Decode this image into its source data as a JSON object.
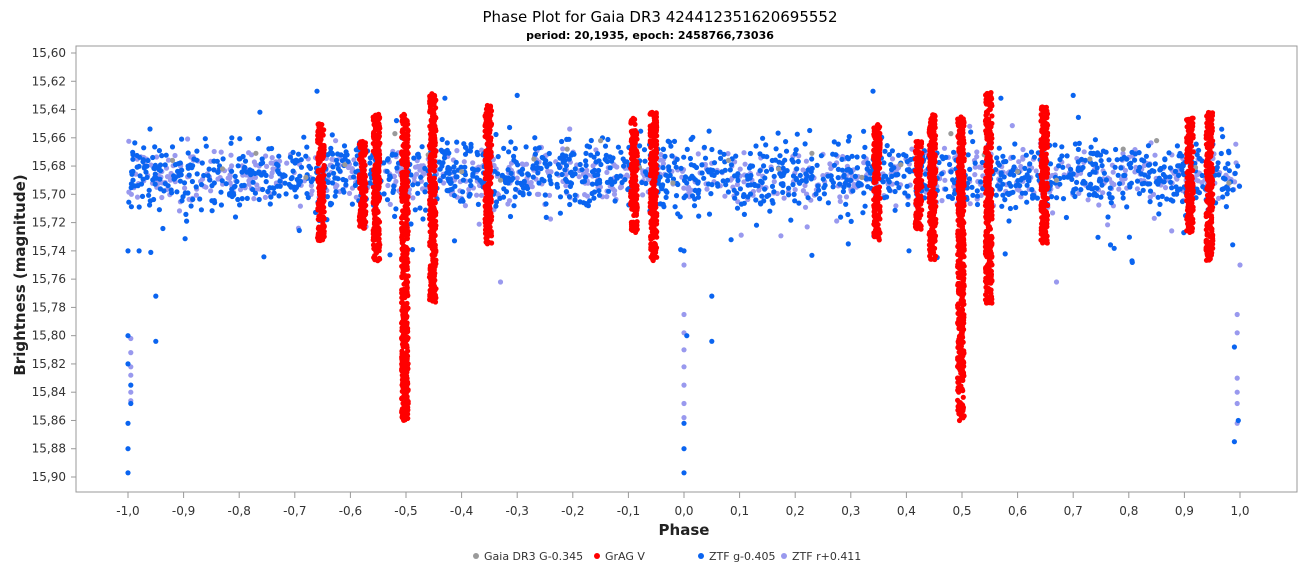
{
  "chart_data": {
    "type": "scatter",
    "title": "Phase Plot for Gaia DR3 424412351620695552",
    "subtitle": "period: 20,1935, epoch: 2458766,73036",
    "xlabel": "Phase",
    "ylabel": "Brightness (magnitude)",
    "xlim": [
      -1.0,
      1.0
    ],
    "ylim": [
      15.6,
      15.9
    ],
    "y_inverted": true,
    "x_ticks": [
      "-1,0",
      "-0,9",
      "-0,8",
      "-0,7",
      "-0,6",
      "-0,5",
      "-0,4",
      "-0,3",
      "-0,2",
      "-0,1",
      "0,0",
      "0,1",
      "0,2",
      "0,3",
      "0,4",
      "0,5",
      "0,6",
      "0,7",
      "0,8",
      "0,9",
      "1,0"
    ],
    "y_ticks": [
      "15,60",
      "15,62",
      "15,64",
      "15,66",
      "15,68",
      "15,70",
      "15,72",
      "15,74",
      "15,76",
      "15,78",
      "15,80",
      "15,82",
      "15,84",
      "15,86",
      "15,88",
      "15,90"
    ],
    "grid": false,
    "legend_position": "bottom-center",
    "series": [
      {
        "name": "Gaia DR3 G-0.345",
        "color": "#9a9a9a",
        "points": [
          [
            -0.92,
            15.676
          ],
          [
            -0.83,
            15.682
          ],
          [
            -0.77,
            15.671
          ],
          [
            -0.68,
            15.688
          ],
          [
            -0.61,
            15.679
          ],
          [
            -0.55,
            15.66
          ],
          [
            -0.52,
            15.657
          ],
          [
            -0.46,
            15.672
          ],
          [
            -0.4,
            15.684
          ],
          [
            -0.33,
            15.69
          ],
          [
            -0.27,
            15.675
          ],
          [
            -0.21,
            15.668
          ],
          [
            -0.15,
            15.662
          ],
          [
            -0.08,
            15.681
          ],
          [
            -0.02,
            15.692
          ],
          [
            0.08,
            15.676
          ],
          [
            0.17,
            15.682
          ],
          [
            0.23,
            15.671
          ],
          [
            0.32,
            15.688
          ],
          [
            0.39,
            15.679
          ],
          [
            0.45,
            15.66
          ],
          [
            0.48,
            15.657
          ],
          [
            0.54,
            15.672
          ],
          [
            0.6,
            15.684
          ],
          [
            0.67,
            15.69
          ],
          [
            0.73,
            15.675
          ],
          [
            0.79,
            15.668
          ],
          [
            0.85,
            15.662
          ],
          [
            0.92,
            15.681
          ],
          [
            0.98,
            15.692
          ]
        ]
      },
      {
        "name": "GrAG V",
        "color": "#ff0000",
        "clusters": [
          {
            "x": -0.653,
            "y_min": 15.65,
            "y_max": 15.733
          },
          {
            "x": -0.578,
            "y_min": 15.662,
            "y_max": 15.725
          },
          {
            "x": -0.553,
            "y_min": 15.643,
            "y_max": 15.747
          },
          {
            "x": -0.502,
            "y_min": 15.643,
            "y_max": 15.86
          },
          {
            "x": -0.452,
            "y_min": 15.628,
            "y_max": 15.777
          },
          {
            "x": -0.352,
            "y_min": 15.637,
            "y_max": 15.735
          },
          {
            "x": -0.09,
            "y_min": 15.645,
            "y_max": 15.727
          },
          {
            "x": -0.055,
            "y_min": 15.642,
            "y_max": 15.748
          },
          {
            "x": 0.347,
            "y_min": 15.65,
            "y_max": 15.733
          },
          {
            "x": 0.422,
            "y_min": 15.662,
            "y_max": 15.725
          },
          {
            "x": 0.447,
            "y_min": 15.643,
            "y_max": 15.747
          },
          {
            "x": 0.498,
            "y_min": 15.643,
            "y_max": 15.86
          },
          {
            "x": 0.548,
            "y_min": 15.628,
            "y_max": 15.777
          },
          {
            "x": 0.648,
            "y_min": 15.637,
            "y_max": 15.735
          },
          {
            "x": 0.91,
            "y_min": 15.645,
            "y_max": 15.727
          },
          {
            "x": 0.945,
            "y_min": 15.642,
            "y_max": 15.748
          }
        ]
      },
      {
        "name": "ZTF g-0.405",
        "color": "#0a64f0",
        "y_band": [
          15.655,
          15.72
        ],
        "x_range": [
          -1.0,
          1.0
        ],
        "outliers": [
          [
            -1.0,
            15.74
          ],
          [
            -1.0,
            15.8
          ],
          [
            -1.0,
            15.82
          ],
          [
            -1.0,
            15.862
          ],
          [
            -1.0,
            15.88
          ],
          [
            -1.0,
            15.897
          ],
          [
            -0.995,
            15.835
          ],
          [
            -0.995,
            15.848
          ],
          [
            -0.95,
            15.772
          ],
          [
            -0.95,
            15.804
          ],
          [
            -0.98,
            15.74
          ],
          [
            -0.66,
            15.627
          ],
          [
            -0.43,
            15.632
          ],
          [
            -0.3,
            15.63
          ],
          [
            0.0,
            15.74
          ],
          [
            0.0,
            15.862
          ],
          [
            0.0,
            15.88
          ],
          [
            0.0,
            15.897
          ],
          [
            0.005,
            15.8
          ],
          [
            0.05,
            15.772
          ],
          [
            0.05,
            15.804
          ],
          [
            0.34,
            15.627
          ],
          [
            0.57,
            15.632
          ],
          [
            0.7,
            15.63
          ],
          [
            0.99,
            15.808
          ],
          [
            0.99,
            15.875
          ],
          [
            0.997,
            15.86
          ]
        ]
      },
      {
        "name": "ZTF r+0.411",
        "color": "#9999ee",
        "y_band": [
          15.662,
          15.712
        ],
        "x_range": [
          -1.0,
          1.0
        ],
        "outliers": [
          [
            -0.995,
            15.802
          ],
          [
            -0.995,
            15.812
          ],
          [
            -0.995,
            15.822
          ],
          [
            -0.995,
            15.828
          ],
          [
            -0.995,
            15.84
          ],
          [
            -0.995,
            15.846
          ],
          [
            0.0,
            15.785
          ],
          [
            0.0,
            15.798
          ],
          [
            0.0,
            15.81
          ],
          [
            0.0,
            15.822
          ],
          [
            0.0,
            15.835
          ],
          [
            0.0,
            15.848
          ],
          [
            0.0,
            15.858
          ],
          [
            0.995,
            15.785
          ],
          [
            0.995,
            15.798
          ],
          [
            0.995,
            15.83
          ],
          [
            0.995,
            15.84
          ],
          [
            0.995,
            15.848
          ],
          [
            0.995,
            15.862
          ],
          [
            0.0,
            15.75
          ],
          [
            1.0,
            15.75
          ],
          [
            -0.33,
            15.762
          ],
          [
            0.67,
            15.762
          ]
        ]
      }
    ]
  }
}
